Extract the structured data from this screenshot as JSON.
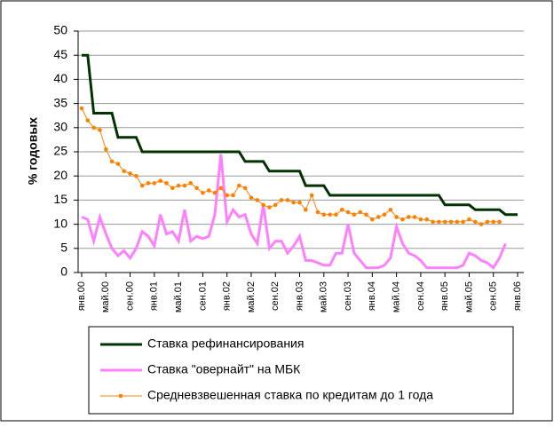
{
  "chart_data": {
    "type": "line",
    "ylabel": "% годовых",
    "ylim": [
      0,
      50
    ],
    "yticks": [
      0,
      5,
      10,
      15,
      20,
      25,
      30,
      35,
      40,
      45,
      50
    ],
    "grid": true,
    "categories": [
      "янв.00",
      null,
      null,
      null,
      "май.00",
      null,
      null,
      null,
      "сен.00",
      null,
      null,
      null,
      "янв.01",
      null,
      null,
      null,
      "май.01",
      null,
      null,
      null,
      "сен.01",
      null,
      null,
      null,
      "янв.02",
      null,
      null,
      null,
      "май.02",
      null,
      null,
      null,
      "сен.02",
      null,
      null,
      null,
      "янв.03",
      null,
      null,
      null,
      "май.03",
      null,
      null,
      null,
      "сен.03",
      null,
      null,
      null,
      "янв.04",
      null,
      null,
      null,
      "май.04",
      null,
      null,
      null,
      "сен.04",
      null,
      null,
      null,
      "янв.05",
      null,
      null,
      null,
      "май.05",
      null,
      null,
      null,
      "сен.05",
      null,
      null,
      null,
      "янв.06"
    ],
    "series": [
      {
        "name": "Ставка рефинансирования",
        "color": "#003300",
        "values": [
          45,
          45,
          33,
          33,
          33,
          33,
          28,
          28,
          28,
          28,
          25,
          25,
          25,
          25,
          25,
          25,
          25,
          25,
          25,
          25,
          25,
          25,
          25,
          25,
          25,
          25,
          25,
          23,
          23,
          23,
          23,
          21,
          21,
          21,
          21,
          21,
          21,
          18,
          18,
          18,
          18,
          16,
          16,
          16,
          16,
          16,
          16,
          16,
          16,
          16,
          16,
          16,
          16,
          16,
          16,
          16,
          16,
          16,
          16,
          16,
          14,
          14,
          14,
          14,
          14,
          13,
          13,
          13,
          13,
          13,
          12,
          12,
          12
        ]
      },
      {
        "name": "Ставка \"овернайт\" на МБК",
        "color": "#ff80ff",
        "values": [
          11.5,
          11,
          6.5,
          11.5,
          8,
          5,
          3.5,
          4.5,
          3,
          5,
          8.5,
          7.5,
          5.5,
          12,
          8,
          8.5,
          6.5,
          13,
          6.5,
          7.5,
          7,
          7.5,
          12,
          24.5,
          10.5,
          13,
          11.5,
          12,
          8,
          6,
          14,
          5,
          6.5,
          6.5,
          4,
          5.5,
          7.5,
          2.5,
          2.5,
          2,
          1.5,
          1.5,
          4,
          4,
          10,
          4,
          2.5,
          1,
          1,
          1,
          1.5,
          3,
          9.5,
          6,
          4,
          3.5,
          2.5,
          1,
          1,
          1,
          1,
          1,
          1,
          1.5,
          4,
          3.5,
          2.5,
          2,
          1,
          3,
          6,
          null,
          null
        ]
      },
      {
        "name": "Средневзвешенная ставка по кредитам до 1 года",
        "color": "#ff8000",
        "values": [
          34,
          31.5,
          30,
          29.5,
          25.5,
          23,
          22.5,
          21,
          20.5,
          20,
          18,
          18.5,
          18.5,
          19,
          18.5,
          17.5,
          18,
          18,
          18.5,
          17.5,
          16.5,
          17,
          16.5,
          17.5,
          16,
          16,
          18,
          17.5,
          15.5,
          15,
          14,
          13.5,
          14,
          15,
          15,
          14.5,
          14.5,
          13,
          16,
          12.5,
          12,
          12,
          12,
          13,
          12.5,
          12,
          12.5,
          12,
          11,
          11.5,
          12,
          13,
          11.5,
          11,
          11.5,
          11.5,
          11,
          11,
          10.5,
          10.5,
          10.5,
          10.5,
          10.5,
          10.5,
          11,
          10.5,
          10,
          10.5,
          10.5,
          10.5,
          null,
          null,
          null
        ]
      }
    ]
  }
}
